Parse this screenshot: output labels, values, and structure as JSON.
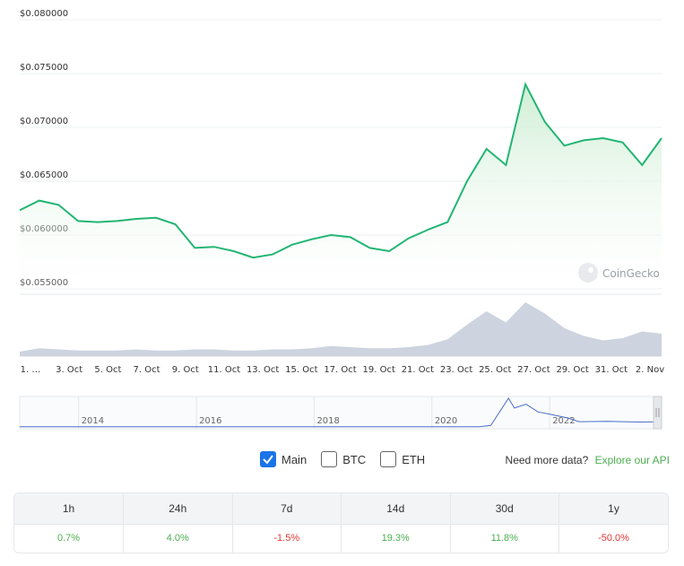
{
  "chart_data": {
    "type": "area",
    "series": [
      {
        "x": [
          "1 Oct",
          "2 Oct",
          "3 Oct",
          "4 Oct",
          "5 Oct",
          "6 Oct",
          "7 Oct",
          "8 Oct",
          "9 Oct",
          "10 Oct",
          "11 Oct",
          "12 Oct",
          "13 Oct",
          "14 Oct",
          "15 Oct",
          "16 Oct",
          "17 Oct",
          "18 Oct",
          "19 Oct",
          "20 Oct",
          "21 Oct",
          "22 Oct",
          "23 Oct",
          "24 Oct",
          "25 Oct",
          "26 Oct",
          "27 Oct",
          "28 Oct",
          "29 Oct",
          "30 Oct",
          "31 Oct",
          "1 Nov",
          "2 Nov",
          "2 Nov"
        ],
        "y": [
          0.0623,
          0.0632,
          0.0628,
          0.0613,
          0.0612,
          0.0613,
          0.0615,
          0.0616,
          0.061,
          0.0588,
          0.0589,
          0.0585,
          0.0579,
          0.0582,
          0.0591,
          0.0596,
          0.06,
          0.0598,
          0.0588,
          0.0585,
          0.0597,
          0.0605,
          0.0612,
          0.065,
          0.068,
          0.0665,
          0.074,
          0.0705,
          0.0683,
          0.0688,
          0.069,
          0.0686,
          0.0665,
          0.069
        ]
      }
    ],
    "volume": [
      4,
      7,
      6,
      5,
      5,
      5,
      6,
      5,
      5,
      6,
      6,
      5,
      5,
      6,
      6,
      7,
      9,
      8,
      7,
      7,
      8,
      10,
      15,
      28,
      40,
      30,
      48,
      38,
      25,
      18,
      14,
      16,
      22,
      20
    ],
    "xtick_labels": [
      "1. …",
      "3. Oct",
      "5. Oct",
      "7. Oct",
      "9. Oct",
      "11. Oct",
      "13. Oct",
      "15. Oct",
      "17. Oct",
      "19. Oct",
      "21. Oct",
      "23. Oct",
      "25. Oct",
      "27. Oct",
      "29. Oct",
      "31. Oct",
      "2. Nov"
    ],
    "ytick_labels": [
      "$0.080000",
      "$0.075000",
      "$0.070000",
      "$0.065000",
      "$0.060000",
      "$0.055000"
    ],
    "ytick_values": [
      0.08,
      0.075,
      0.07,
      0.065,
      0.06,
      0.055
    ],
    "ylim": [
      0.055,
      0.08
    ],
    "navigator": {
      "labels": [
        "2014",
        "2016",
        "2018",
        "2020",
        "2022"
      ],
      "years": [
        2013,
        2023.9
      ],
      "points": [
        [
          2013.0,
          0.002
        ],
        [
          2017.0,
          0.002
        ],
        [
          2018.0,
          0.004
        ],
        [
          2019.5,
          0.003
        ],
        [
          2020.8,
          0.004
        ],
        [
          2021.0,
          0.02
        ],
        [
          2021.3,
          0.38
        ],
        [
          2021.4,
          0.25
        ],
        [
          2021.6,
          0.3
        ],
        [
          2021.8,
          0.2
        ],
        [
          2022.0,
          0.17
        ],
        [
          2022.3,
          0.12
        ],
        [
          2022.5,
          0.07
        ],
        [
          2023.0,
          0.075
        ],
        [
          2023.5,
          0.065
        ],
        [
          2023.9,
          0.069
        ]
      ]
    },
    "watermark": "CoinGecko",
    "colors": {
      "line": "#22b573",
      "fill_top": "#c9eccf",
      "volume": "#cdd3df",
      "nav_line": "#4a6fc7"
    }
  },
  "toggles": {
    "main": {
      "label": "Main",
      "checked": true
    },
    "btc": {
      "label": "BTC",
      "checked": false
    },
    "eth": {
      "label": "ETH",
      "checked": false
    }
  },
  "more_data": {
    "text": "Need more data?",
    "link": "Explore our API"
  },
  "changes": {
    "headers": [
      "1h",
      "24h",
      "7d",
      "14d",
      "30d",
      "1y"
    ],
    "values": [
      "0.7%",
      "4.0%",
      "-1.5%",
      "19.3%",
      "11.8%",
      "-50.0%"
    ]
  }
}
